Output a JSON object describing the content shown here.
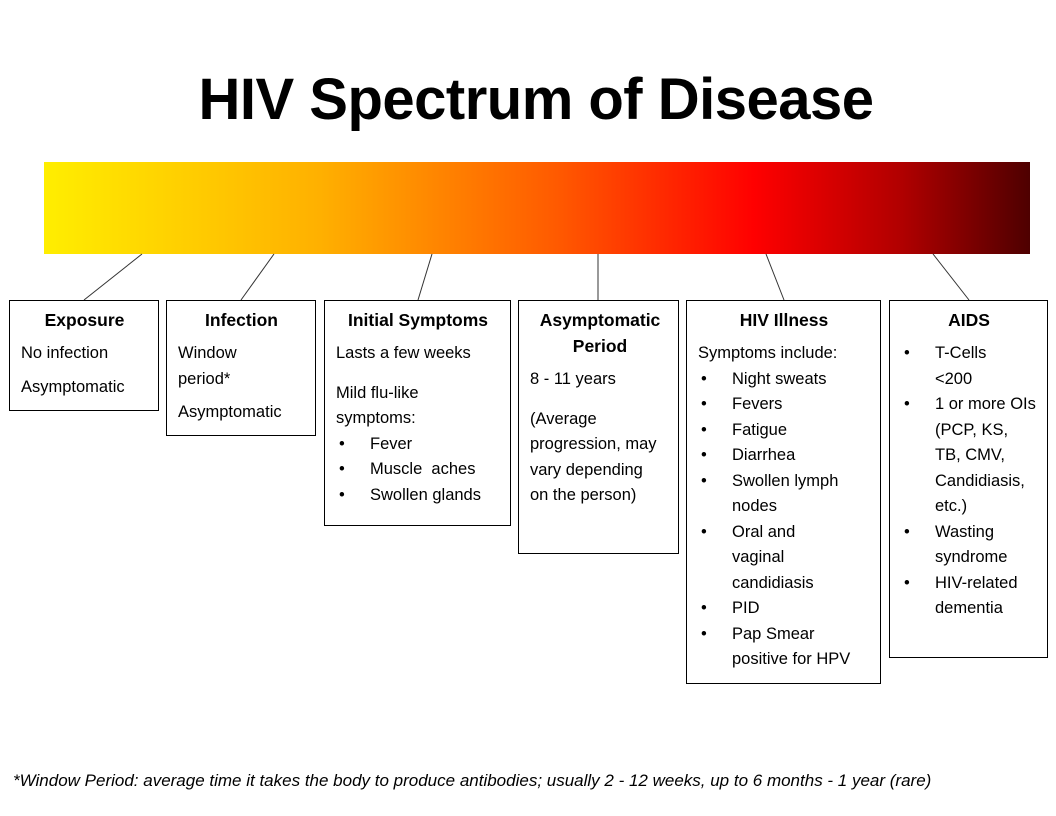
{
  "title": "HIV Spectrum of Disease",
  "gradient_colors": [
    "#ffee00",
    "#ffb000",
    "#ff5a00",
    "#ff0000",
    "#b00000",
    "#4e0000"
  ],
  "stages": [
    {
      "heading": "Exposure",
      "lines": [
        "No infection",
        "Asymptomatic"
      ]
    },
    {
      "heading": "Infection",
      "lines": [
        "Window period*",
        "Asymptomatic"
      ]
    },
    {
      "heading": "Initial Symptoms",
      "lines": [
        "Lasts a few weeks",
        "Mild flu-like symptoms:"
      ],
      "bullets": [
        "Fever",
        "Muscle  aches",
        "Swollen glands"
      ]
    },
    {
      "heading": "Asymptomatic Period",
      "lines": [
        "8 - 11 years",
        "(Average progression, may vary depending on the person)"
      ]
    },
    {
      "heading": "HIV Illness",
      "lines": [
        "Symptoms include:"
      ],
      "bullets": [
        "Night sweats",
        "Fevers",
        "Fatigue",
        "Diarrhea",
        "Swollen lymph nodes",
        "Oral and vaginal candidiasis",
        "PID",
        "Pap Smear positive for HPV"
      ]
    },
    {
      "heading": "AIDS",
      "bullets": [
        "T-Cells <200",
        "1 or more OIs (PCP, KS, TB, CMV, Candidiasis, etc.)",
        "Wasting syndrome",
        "HIV-related dementia"
      ]
    }
  ],
  "footnote": "*Window Period: average time it takes the body to produce antibodies; usually 2 - 12 weeks, up to 6 months - 1 year (rare)"
}
